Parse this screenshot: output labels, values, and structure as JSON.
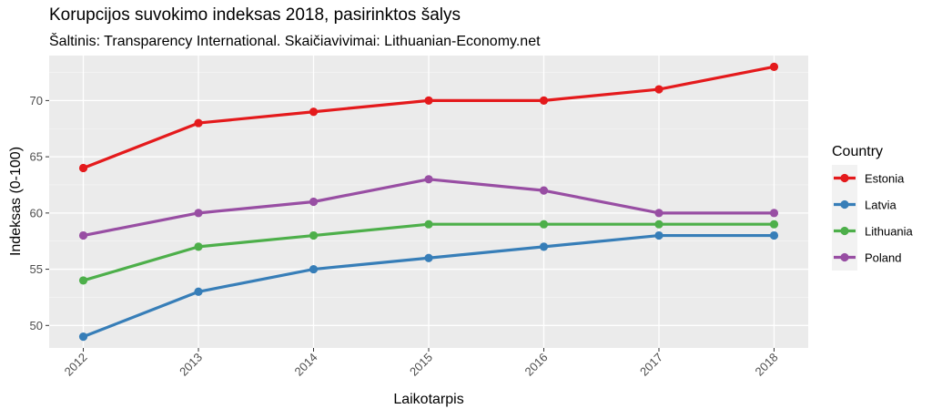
{
  "chart_data": {
    "type": "line",
    "title": "Korupcijos suvokimo indeksas 2018, pasirinktos šalys",
    "subtitle": "Šaltinis: Transparency International. Skaičiavivimai: Lithuanian-Economy.net",
    "xlabel": "Laikotarpis",
    "ylabel": "Indeksas (0-100)",
    "x": [
      "2012",
      "2013",
      "2014",
      "2015",
      "2016",
      "2017",
      "2018"
    ],
    "yticks": [
      50,
      55,
      60,
      65,
      70
    ],
    "ylim": [
      48,
      74
    ],
    "grid": true,
    "legend": {
      "title": "Country",
      "position": "right"
    },
    "series": [
      {
        "name": "Estonia",
        "color": "#e41a1c",
        "values": [
          64,
          68,
          69,
          70,
          70,
          71,
          73
        ]
      },
      {
        "name": "Latvia",
        "color": "#377eb8",
        "values": [
          49,
          53,
          55,
          56,
          57,
          58,
          58
        ]
      },
      {
        "name": "Lithuania",
        "color": "#4daf4a",
        "values": [
          54,
          57,
          58,
          59,
          59,
          59,
          59
        ]
      },
      {
        "name": "Poland",
        "color": "#984ea3",
        "values": [
          58,
          60,
          61,
          63,
          62,
          60,
          60
        ]
      }
    ]
  }
}
